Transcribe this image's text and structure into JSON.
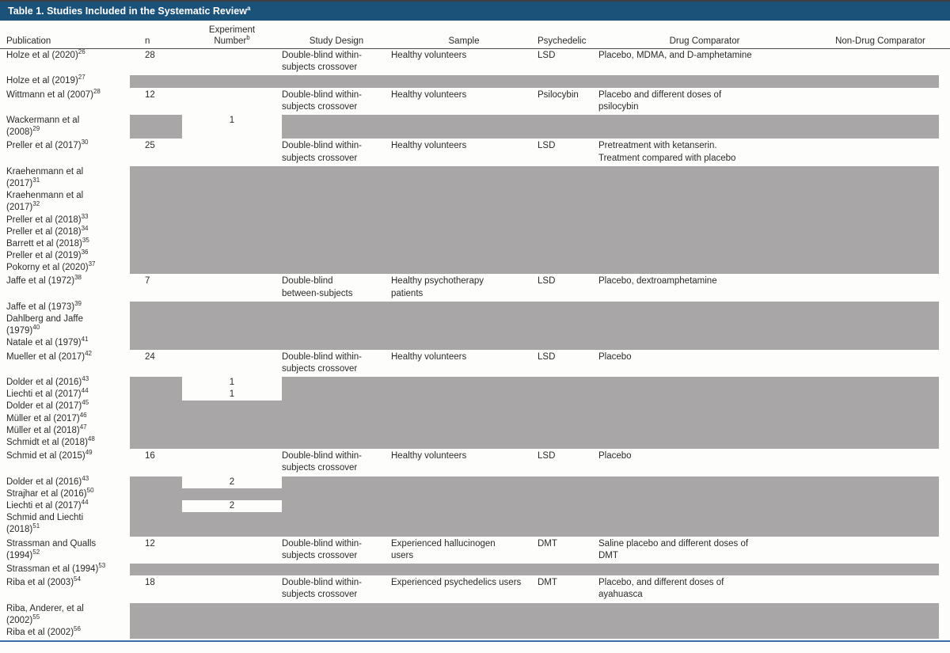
{
  "colors": {
    "title_bar": "#1a527a",
    "title_text": "#ffffff",
    "mask_gray": "#a9a6a7",
    "top_rule": "#3f3f3f",
    "header_rule": "#4a4b4d",
    "bottom_rule": "#376ea6",
    "page_background": "#fdfdfb"
  },
  "table": {
    "title": {
      "text": "Table 1. Studies Included in the Systematic Review",
      "sup": "a"
    },
    "columns": [
      {
        "label": "Publication"
      },
      {
        "label": "n"
      },
      {
        "label_line1": "Experiment",
        "label_line2": "Number",
        "sup": "b"
      },
      {
        "label": "Study Design"
      },
      {
        "label": "Sample"
      },
      {
        "label": "Psychedelic"
      },
      {
        "label": "Drug Comparator"
      },
      {
        "label": "Non-Drug Comparator"
      }
    ],
    "blocks": [
      {
        "kind": "data",
        "pub": {
          "text": "Holze et al (2020)",
          "sup": "26"
        },
        "n": "28",
        "exp": "",
        "design": "Double-blind within-\nsubjects crossover",
        "sample": "Healthy volunteers",
        "psychedelic": "LSD",
        "drug": "Placebo, MDMA, and D-amphetamine",
        "nondrug": ""
      },
      {
        "kind": "masked",
        "rows": [
          {
            "pub": "Holze et al (2019)",
            "sup": "27",
            "mask": "full"
          }
        ]
      },
      {
        "kind": "data",
        "pub": {
          "text": "Wittmann et al (2007)",
          "sup": "28"
        },
        "n": "12",
        "exp": "",
        "design": "Double-blind within-\nsubjects crossover",
        "sample": "Healthy volunteers",
        "psychedelic": "Psilocybin",
        "drug": "Placebo and different doses of\npsilocybin",
        "nondrug": ""
      },
      {
        "kind": "masked",
        "rows": [
          {
            "pub": "Wackermann et al",
            "sup": "",
            "mask": "exp",
            "exp": "1"
          },
          {
            "pub": "(2008)",
            "sup": "29",
            "mask": "exp",
            "exp": ""
          }
        ]
      },
      {
        "kind": "data",
        "pub": {
          "text": "Preller et al (2017)",
          "sup": "30"
        },
        "n": "25",
        "exp": "",
        "design": "Double-blind within-\nsubjects crossover",
        "sample": "Healthy volunteers",
        "psychedelic": "LSD",
        "drug": "Pretreatment with ketanserin.\nTreatment compared with placebo",
        "nondrug": ""
      },
      {
        "kind": "masked",
        "rows": [
          {
            "pub": "Kraehenmann et al",
            "sup": "",
            "mask": "full"
          },
          {
            "pub": "(2017)",
            "sup": "31",
            "mask": "full"
          },
          {
            "pub": "Kraehenmann et al",
            "sup": "",
            "mask": "full"
          },
          {
            "pub": "(2017)",
            "sup": "32",
            "mask": "full"
          },
          {
            "pub": "Preller et al (2018)",
            "sup": "33",
            "mask": "full"
          },
          {
            "pub": "Preller et al (2018)",
            "sup": "34",
            "mask": "full"
          },
          {
            "pub": "Barrett et al (2018)",
            "sup": "35",
            "mask": "full"
          },
          {
            "pub": "Preller et al (2019)",
            "sup": "36",
            "mask": "full"
          },
          {
            "pub": "Pokorny et al (2020)",
            "sup": "37",
            "mask": "full"
          }
        ]
      },
      {
        "kind": "data",
        "pub": {
          "text": "Jaffe et al (1972)",
          "sup": "38"
        },
        "n": "7",
        "exp": "",
        "design": "Double-blind\nbetween-subjects",
        "sample": "Healthy psychotherapy\npatients",
        "psychedelic": "LSD",
        "drug": "Placebo, dextroamphetamine",
        "nondrug": ""
      },
      {
        "kind": "masked",
        "rows": [
          {
            "pub": "Jaffe et al (1973)",
            "sup": "39",
            "mask": "full"
          },
          {
            "pub": "Dahlberg and Jaffe",
            "sup": "",
            "mask": "full"
          },
          {
            "pub": "(1979)",
            "sup": "40",
            "mask": "full"
          },
          {
            "pub": "Natale et al (1979)",
            "sup": "41",
            "mask": "full"
          }
        ]
      },
      {
        "kind": "data",
        "pub": {
          "text": "Mueller et al (2017)",
          "sup": "42"
        },
        "n": "24",
        "exp": "",
        "design": "Double-blind within-\nsubjects crossover",
        "sample": "Healthy volunteers",
        "psychedelic": "LSD",
        "drug": "Placebo",
        "nondrug": ""
      },
      {
        "kind": "masked",
        "rows": [
          {
            "pub": "Dolder et al (2016)",
            "sup": "43",
            "mask": "exp",
            "exp": "1"
          },
          {
            "pub": "Liechti et al (2017)",
            "sup": "44",
            "mask": "exp",
            "exp": "1"
          },
          {
            "pub": "Dolder et al (2017)",
            "sup": "45",
            "mask": "full"
          },
          {
            "pub": "Müller et al (2017)",
            "sup": "46",
            "mask": "full"
          },
          {
            "pub": "Müller et al (2018)",
            "sup": "47",
            "mask": "full"
          },
          {
            "pub": "Schmidt et al (2018)",
            "sup": "48",
            "mask": "full"
          }
        ]
      },
      {
        "kind": "data",
        "pub": {
          "text": "Schmid et al (2015)",
          "sup": "49"
        },
        "n": "16",
        "exp": "",
        "design": "Double-blind within-\nsubjects crossover",
        "sample": "Healthy volunteers",
        "psychedelic": "LSD",
        "drug": "Placebo",
        "nondrug": ""
      },
      {
        "kind": "masked",
        "rows": [
          {
            "pub": "Dolder et al (2016)",
            "sup": "43",
            "mask": "exp",
            "exp": "2"
          },
          {
            "pub": "Strajhar et al (2016)",
            "sup": "50",
            "mask": "full"
          },
          {
            "pub": "Liechti et al (2017)",
            "sup": "44",
            "mask": "exp",
            "exp": "2"
          },
          {
            "pub": "Schmid and Liechti",
            "sup": "",
            "mask": "full"
          },
          {
            "pub": "(2018)",
            "sup": "51",
            "mask": "full"
          }
        ]
      },
      {
        "kind": "data",
        "pub": {
          "text": "Strassman and Qualls\n(1994)",
          "sup": "52"
        },
        "n": "12",
        "exp": "",
        "design": "Double-blind within-\nsubjects crossover",
        "sample": "Experienced hallucinogen\nusers",
        "psychedelic": "DMT",
        "drug": "Saline placebo and different doses of\nDMT",
        "nondrug": ""
      },
      {
        "kind": "masked",
        "rows": [
          {
            "pub": "Strassman et al (1994)",
            "sup": "53",
            "mask": "full"
          }
        ]
      },
      {
        "kind": "data",
        "pub": {
          "text": "Riba et al (2003)",
          "sup": "54"
        },
        "n": "18",
        "exp": "",
        "design": "Double-blind within-\nsubjects crossover",
        "sample": "Experienced psychedelics users",
        "psychedelic": "DMT",
        "drug": "Placebo, and different doses of\nayahuasca",
        "nondrug": ""
      },
      {
        "kind": "masked",
        "rows": [
          {
            "pub": "Riba, Anderer, et al",
            "sup": "",
            "mask": "full"
          },
          {
            "pub": "(2002)",
            "sup": "55",
            "mask": "full"
          },
          {
            "pub": "Riba et al (2002)",
            "sup": "56",
            "mask": "full"
          }
        ]
      }
    ]
  }
}
